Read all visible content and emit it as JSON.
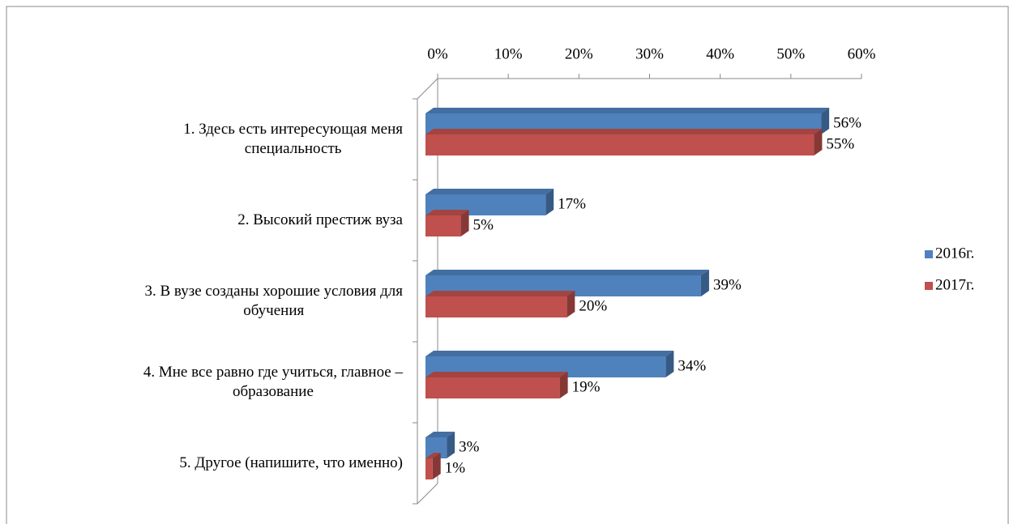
{
  "chart_data": {
    "type": "bar",
    "orientation": "horizontal",
    "categories": [
      "1. Здесь есть интересующая меня\nспециальность",
      "2. Высокий престиж вуза",
      "3. В вузе созданы хорошие условия для\nобучения",
      "4. Мне все равно где учиться, главное –\nобразование",
      "5. Другое (напишите, что именно)"
    ],
    "series": [
      {
        "name": "2016г.",
        "color": "#4f81bd",
        "values": [
          56,
          17,
          39,
          34,
          3
        ],
        "value_labels": [
          "56%",
          "17%",
          "39%",
          "34%",
          "3%"
        ]
      },
      {
        "name": "2017г.",
        "color": "#c0504d",
        "values": [
          55,
          5,
          20,
          19,
          1
        ],
        "value_labels": [
          "55%",
          "5%",
          "20%",
          "19%",
          "1%"
        ]
      }
    ],
    "xlim": [
      0,
      60
    ],
    "xticks": [
      {
        "value": 0,
        "label": "0%"
      },
      {
        "value": 10,
        "label": "10%"
      },
      {
        "value": 20,
        "label": "20%"
      },
      {
        "value": 30,
        "label": "30%"
      },
      {
        "value": 40,
        "label": "40%"
      },
      {
        "value": 50,
        "label": "50%"
      },
      {
        "value": 60,
        "label": "60%"
      }
    ],
    "legend": "right"
  }
}
